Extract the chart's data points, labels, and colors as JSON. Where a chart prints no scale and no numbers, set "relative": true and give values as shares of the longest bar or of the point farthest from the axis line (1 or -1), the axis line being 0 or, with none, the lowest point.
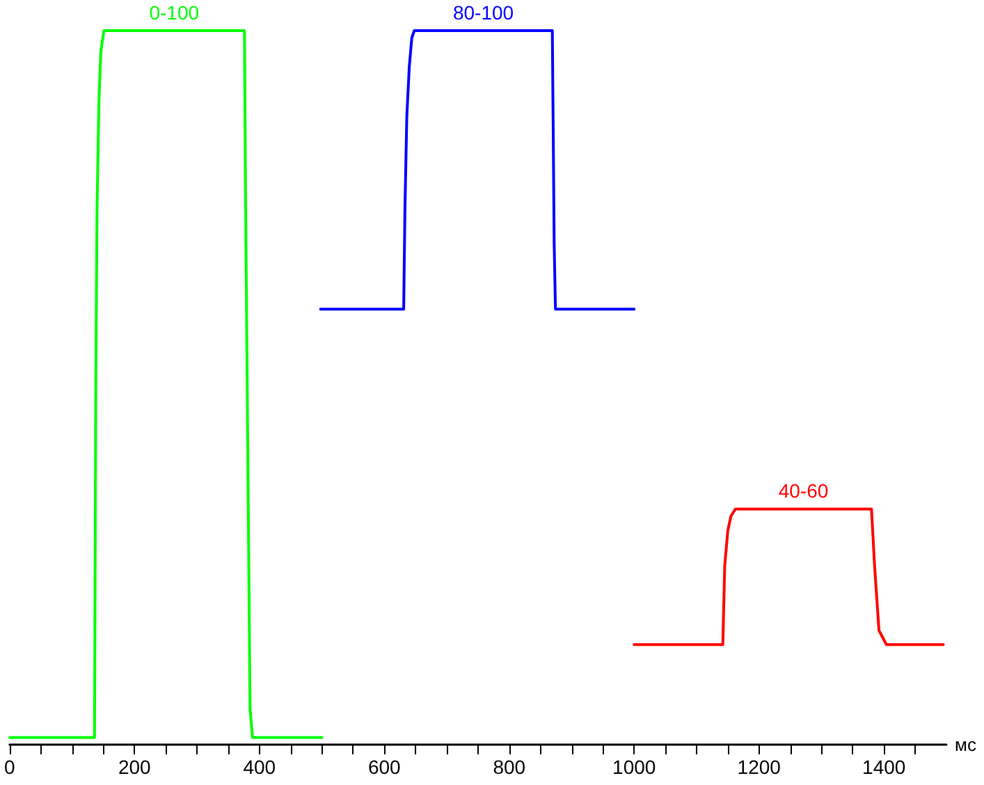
{
  "chart_data": {
    "type": "line",
    "relative": true,
    "xlabel": "мс",
    "xlim": [
      0,
      1500
    ],
    "xticks": [
      0,
      {
        "value": 50,
        "label": null
      },
      200,
      {
        "value": 100,
        "label": null
      },
      {
        "value": 150,
        "label": null
      },
      {
        "value": 250,
        "label": null
      },
      {
        "value": 300,
        "label": null
      },
      {
        "value": 350,
        "label": null
      },
      400,
      {
        "value": 450,
        "label": null
      },
      {
        "value": 500,
        "label": null
      },
      {
        "value": 550,
        "label": null
      },
      600,
      {
        "value": 650,
        "label": null
      },
      {
        "value": 700,
        "label": null
      },
      {
        "value": 750,
        "label": null
      },
      800,
      {
        "value": 850,
        "label": null
      },
      {
        "value": 900,
        "label": null
      },
      {
        "value": 950,
        "label": null
      },
      1000,
      {
        "value": 1050,
        "label": null
      },
      {
        "value": 1100,
        "label": null
      },
      {
        "value": 1150,
        "label": null
      },
      1200,
      {
        "value": 1250,
        "label": null
      },
      {
        "value": 1300,
        "label": null
      },
      {
        "value": 1350,
        "label": null
      },
      1400,
      {
        "value": 1450,
        "label": null
      }
    ],
    "grid": false,
    "marker": "none",
    "line_style": "solid",
    "legend": false,
    "series": [
      {
        "name": "0-100",
        "color": "#00ff00",
        "x": [
          0,
          136,
          138,
          140,
          143,
          146,
          151,
          376,
          378,
          385,
          389,
          500
        ],
        "values": [
          0.01,
          0.01,
          0.5,
          0.75,
          0.9,
          0.97,
          1,
          1,
          0.75,
          0.05,
          0.01,
          0.01
        ]
      },
      {
        "name": "80-100",
        "color": "#0000ff",
        "x": [
          498,
          631,
          633,
          636,
          640,
          644,
          648,
          869,
          870,
          872,
          874,
          1000
        ],
        "values": [
          0.61,
          0.61,
          0.75,
          0.88,
          0.95,
          0.99,
          1,
          1,
          0.9,
          0.7,
          0.61,
          0.61
        ]
      },
      {
        "name": "40-60",
        "color": "#ff0000",
        "x": [
          1000,
          1142,
          1145,
          1150,
          1155,
          1162,
          1380,
          1385,
          1392,
          1404,
          1495
        ],
        "values": [
          0.14,
          0.14,
          0.25,
          0.3,
          0.32,
          0.33,
          0.33,
          0.25,
          0.16,
          0.14,
          0.14
        ]
      }
    ]
  }
}
